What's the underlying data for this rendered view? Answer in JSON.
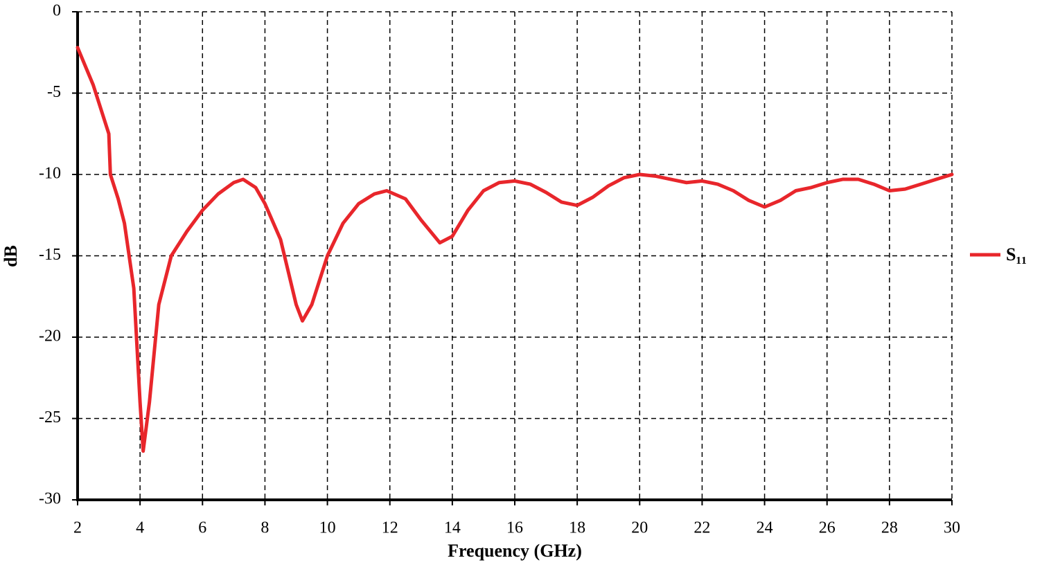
{
  "chart_data": {
    "type": "line",
    "xlabel": "Frequency (GHz)",
    "ylabel": "dB",
    "xlim": [
      2,
      30
    ],
    "xticks": [
      2,
      4,
      6,
      8,
      10,
      12,
      14,
      16,
      18,
      20,
      22,
      24,
      26,
      28,
      30
    ],
    "ylim": [
      -30,
      0
    ],
    "yticks": [
      0,
      -5,
      -10,
      -15,
      -20,
      -25,
      -30
    ],
    "grid": true,
    "legend": "right",
    "x": [
      2,
      2.5,
      3,
      3.05,
      3.3,
      3.5,
      3.8,
      4.0,
      4.1,
      4.3,
      4.6,
      5.0,
      5.5,
      6,
      6.5,
      7,
      7.3,
      7.7,
      8,
      8.5,
      9,
      9.2,
      9.5,
      10,
      10.5,
      11,
      11.5,
      11.9,
      12.5,
      13,
      13.6,
      14,
      14.5,
      15,
      15.5,
      16,
      16.5,
      17,
      17.5,
      18,
      18.5,
      19,
      19.5,
      20,
      20.5,
      21,
      21.5,
      22,
      22.5,
      23,
      23.5,
      24,
      24.5,
      25,
      25.5,
      26,
      26.5,
      27,
      27.5,
      28,
      28.5,
      29,
      29.5,
      30
    ],
    "series": [
      {
        "name": "S₁₁",
        "color": "#e8262b",
        "values": [
          -2.2,
          -4.5,
          -7.5,
          -10,
          -11.5,
          -13,
          -17,
          -24,
          -27,
          -24,
          -18,
          -15,
          -13.5,
          -12.2,
          -11.2,
          -10.5,
          -10.3,
          -10.8,
          -11.8,
          -14,
          -18,
          -19,
          -18,
          -15,
          -13,
          -11.8,
          -11.2,
          -11.0,
          -11.5,
          -12.8,
          -14.2,
          -13.8,
          -12.2,
          -11,
          -10.5,
          -10.4,
          -10.6,
          -11.1,
          -11.7,
          -11.9,
          -11.4,
          -10.7,
          -10.2,
          -10.0,
          -10.1,
          -10.3,
          -10.5,
          -10.4,
          -10.6,
          -11,
          -11.6,
          -12,
          -11.6,
          -11,
          -10.8,
          -10.5,
          -10.3,
          -10.3,
          -10.6,
          -11,
          -10.9,
          -10.6,
          -10.3,
          -10.0
        ]
      }
    ]
  }
}
